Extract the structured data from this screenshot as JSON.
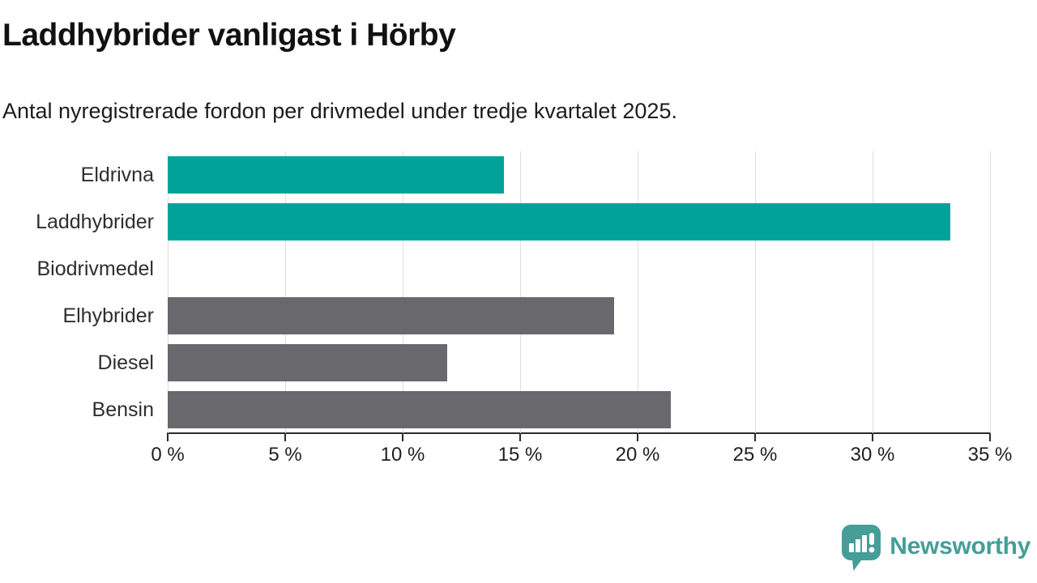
{
  "header": {
    "title": "Laddhybrider vanligast i Hörby",
    "subtitle": "Antal nyregistrerade fordon per drivmedel under tredje kvartalet 2025."
  },
  "chart_data": {
    "type": "bar",
    "orientation": "horizontal",
    "title": "Laddhybrider vanligast i Hörby",
    "subtitle": "Antal nyregistrerade fordon per drivmedel under tredje kvartalet 2025.",
    "categories": [
      "Eldrivna",
      "Laddhybrider",
      "Biodrivmedel",
      "Elhybrider",
      "Diesel",
      "Bensin"
    ],
    "values": [
      14.3,
      33.3,
      0,
      19.0,
      11.9,
      21.4
    ],
    "unit": "%",
    "bar_colors": [
      "#00a29a",
      "#00a29a",
      "#69696d",
      "#69696d",
      "#69696d",
      "#69696d"
    ],
    "highlight_color": "#00a29a",
    "default_color": "#69696d",
    "xlim": [
      0,
      35
    ],
    "x_ticks": [
      0,
      5,
      10,
      15,
      20,
      25,
      30,
      35
    ],
    "x_tick_labels": [
      "0 %",
      "5 %",
      "10 %",
      "15 %",
      "20 %",
      "25 %",
      "30 %",
      "35 %"
    ],
    "grid": "vertical",
    "gridline_color": "#dddddd",
    "legend": "none"
  },
  "footer": {
    "brand": "Newsworthy",
    "brand_color": "#459e98"
  }
}
